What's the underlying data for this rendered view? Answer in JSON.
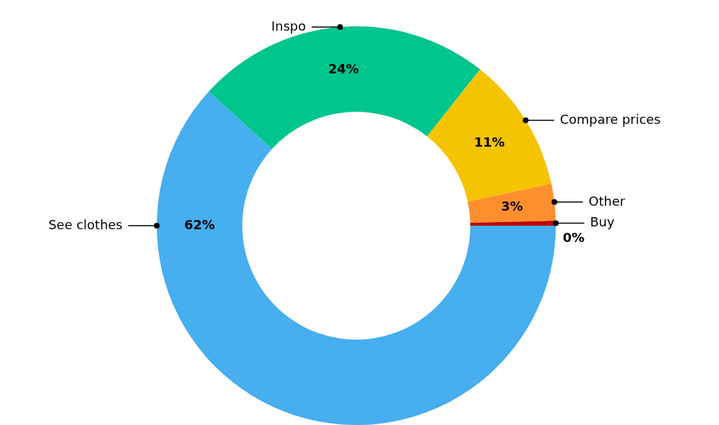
{
  "chart_data": {
    "type": "donut",
    "categories": [
      "See clothes",
      "Inspo",
      "Compare prices",
      "Other",
      "Buy"
    ],
    "values": [
      62,
      24,
      11,
      3,
      0.4
    ],
    "value_labels": [
      "62%",
      "24%",
      "11%",
      "3%",
      "0%"
    ],
    "colors": [
      "#47aeef",
      "#00c58c",
      "#f5c400",
      "#ff8f2e",
      "#bf0000"
    ]
  }
}
